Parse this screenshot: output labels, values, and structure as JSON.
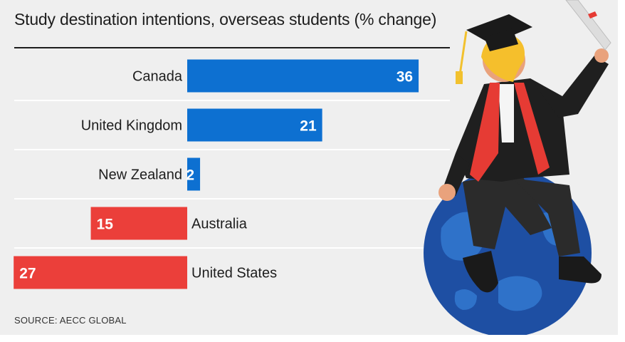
{
  "chart_data": {
    "type": "bar",
    "title": "Study destination intentions, overseas students (% change)",
    "categories": [
      "Canada",
      "United Kingdom",
      "New Zealand",
      "Australia",
      "United States"
    ],
    "values": [
      36,
      21,
      2,
      -15,
      -27
    ],
    "value_labels": [
      "36",
      "21",
      "2",
      "15",
      "27"
    ],
    "orientation": "horizontal-diverging",
    "xlim": [
      -27,
      36
    ],
    "grid": "horizontal separators",
    "source": "SOURCE: AECC GLOBAL"
  },
  "colors": {
    "positive": "#0d70d1",
    "negative": "#eb3f3a",
    "background": "#efefef",
    "text": "#1d1d1d",
    "separator": "#ffffff"
  },
  "illustration": {
    "icon": "graduate-on-globe-illustration"
  }
}
